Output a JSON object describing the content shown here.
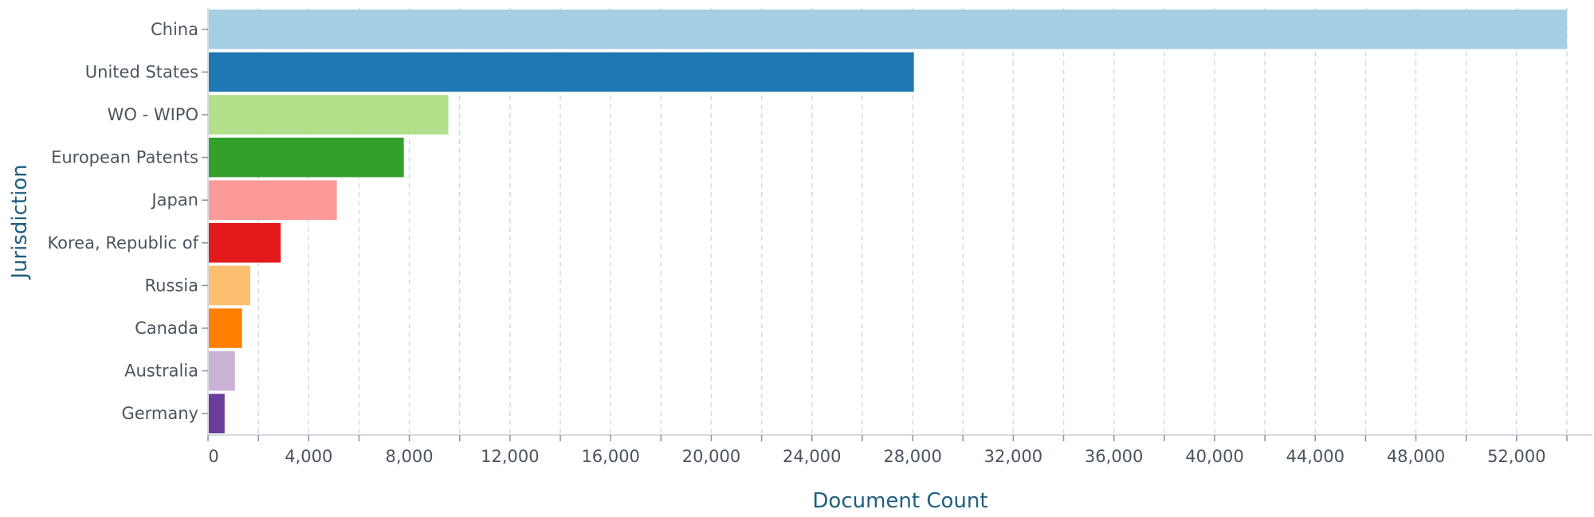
{
  "chart_data": {
    "type": "bar",
    "orientation": "horizontal",
    "title": "",
    "xlabel": "Document Count",
    "ylabel": "Jurisdiction",
    "xlim": [
      0,
      54000
    ],
    "x_tick_values": [
      0,
      4000,
      8000,
      12000,
      16000,
      20000,
      24000,
      28000,
      32000,
      36000,
      40000,
      44000,
      48000,
      52000
    ],
    "x_tick_labels": [
      "0",
      "4,000",
      "8,000",
      "12,000",
      "16,000",
      "20,000",
      "24,000",
      "28,000",
      "32,000",
      "36,000",
      "40,000",
      "44,000",
      "48,000",
      "52,000"
    ],
    "categories": [
      "China",
      "United States",
      "WO - WIPO",
      "European Patents",
      "Japan",
      "Korea, Republic of",
      "Russia",
      "Canada",
      "Australia",
      "Germany"
    ],
    "values": [
      54000,
      28050,
      9550,
      7780,
      5120,
      2890,
      1680,
      1350,
      1070,
      660
    ],
    "colors": [
      "#a6cee3",
      "#1f78b4",
      "#b2df8a",
      "#33a02c",
      "#fb9a99",
      "#e31a1c",
      "#fdbf6f",
      "#ff7f00",
      "#cab2d6",
      "#6a3d9a"
    ],
    "grid": true
  }
}
